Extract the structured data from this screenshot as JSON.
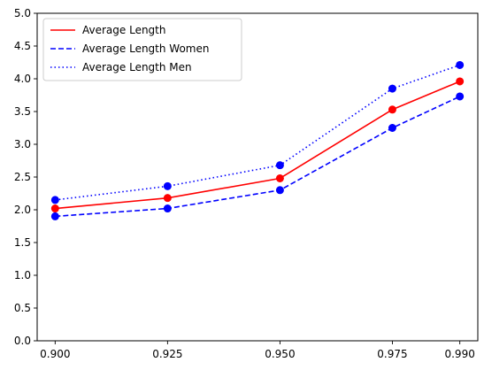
{
  "chart_data": {
    "type": "line",
    "title": "",
    "xlabel": "",
    "ylabel": "",
    "x": [
      0.9,
      0.925,
      0.95,
      0.975,
      0.99
    ],
    "x_tick_labels": [
      "0.900",
      "0.925",
      "0.950",
      "0.975",
      "0.990"
    ],
    "y_ticks": [
      0.0,
      0.5,
      1.0,
      1.5,
      2.0,
      2.5,
      3.0,
      3.5,
      4.0,
      4.5,
      5.0
    ],
    "y_tick_labels": [
      "0.0",
      "0.5",
      "1.0",
      "1.5",
      "2.0",
      "2.5",
      "3.0",
      "3.5",
      "4.0",
      "4.5",
      "5.0"
    ],
    "xlim": [
      0.896,
      0.994
    ],
    "ylim": [
      0.0,
      5.0
    ],
    "grid": false,
    "legend_position": "top-left",
    "series": [
      {
        "name": "Average Length",
        "values": [
          2.02,
          2.18,
          2.48,
          3.53,
          3.96
        ],
        "color": "#ff0000",
        "line_style": "solid",
        "marker": "circle"
      },
      {
        "name": "Average Length Women",
        "values": [
          1.9,
          2.02,
          2.3,
          3.25,
          3.73
        ],
        "color": "#0000ff",
        "line_style": "dashed",
        "marker": "circle"
      },
      {
        "name": "Average Length Men",
        "values": [
          2.15,
          2.36,
          2.68,
          3.85,
          4.21
        ],
        "color": "#0000ff",
        "line_style": "dotted",
        "marker": "circle"
      }
    ]
  }
}
